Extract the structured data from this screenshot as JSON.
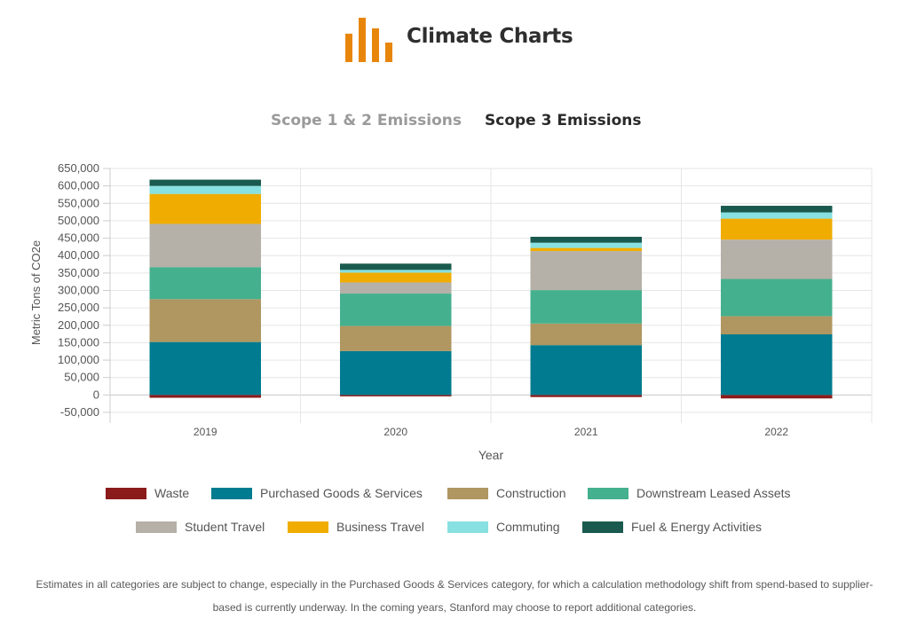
{
  "header": {
    "title": "Climate Charts",
    "accent_color": "#e8860c",
    "logo_icon": "bar-chart-logo-icon"
  },
  "tabs": [
    {
      "label": "Scope 1 & 2 Emissions",
      "active": false
    },
    {
      "label": "Scope 3 Emissions",
      "active": true
    }
  ],
  "chart_data": {
    "type": "bar",
    "stacked": true,
    "title": "",
    "xlabel": "Year",
    "ylabel": "Metric Tons of CO2e",
    "ylim": [
      -50000,
      650000
    ],
    "yticks": [
      -50000,
      0,
      50000,
      100000,
      150000,
      200000,
      250000,
      300000,
      350000,
      400000,
      450000,
      500000,
      550000,
      600000,
      650000
    ],
    "ytick_labels": [
      "-50,000",
      "0",
      "50,000",
      "100,000",
      "150,000",
      "200,000",
      "250,000",
      "300,000",
      "350,000",
      "400,000",
      "450,000",
      "500,000",
      "550,000",
      "600,000",
      "650,000"
    ],
    "grid": true,
    "legend_position": "bottom",
    "categories": [
      "2019",
      "2020",
      "2021",
      "2022"
    ],
    "series": [
      {
        "name": "Waste",
        "color": "#8b1a1a",
        "values": [
          -8000,
          -4000,
          -6000,
          -10000
        ]
      },
      {
        "name": "Purchased Goods & Services",
        "color": "#007b8f",
        "values": [
          152000,
          126000,
          143000,
          174000
        ]
      },
      {
        "name": "Construction",
        "color": "#b09660",
        "values": [
          123000,
          72000,
          62000,
          52000
        ]
      },
      {
        "name": "Downstream Leased Assets",
        "color": "#44b08e",
        "values": [
          92000,
          93000,
          96000,
          107000
        ]
      },
      {
        "name": "Student Travel",
        "color": "#b5b0a8",
        "values": [
          124000,
          32000,
          112000,
          113000
        ]
      },
      {
        "name": "Business Travel",
        "color": "#f0ac00",
        "values": [
          86000,
          28000,
          9000,
          60000
        ]
      },
      {
        "name": "Commuting",
        "color": "#88e0e0",
        "values": [
          23000,
          8000,
          15000,
          18000
        ]
      },
      {
        "name": "Fuel & Energy Activities",
        "color": "#1a5a4e",
        "values": [
          18000,
          18000,
          17000,
          19000
        ]
      }
    ]
  },
  "footnote": "Estimates in all categories are subject to change, especially in the Purchased Goods & Services category, for which a calculation methodology shift from spend-based to supplier-based is currently underway. In the coming years, Stanford may choose to report additional categories."
}
